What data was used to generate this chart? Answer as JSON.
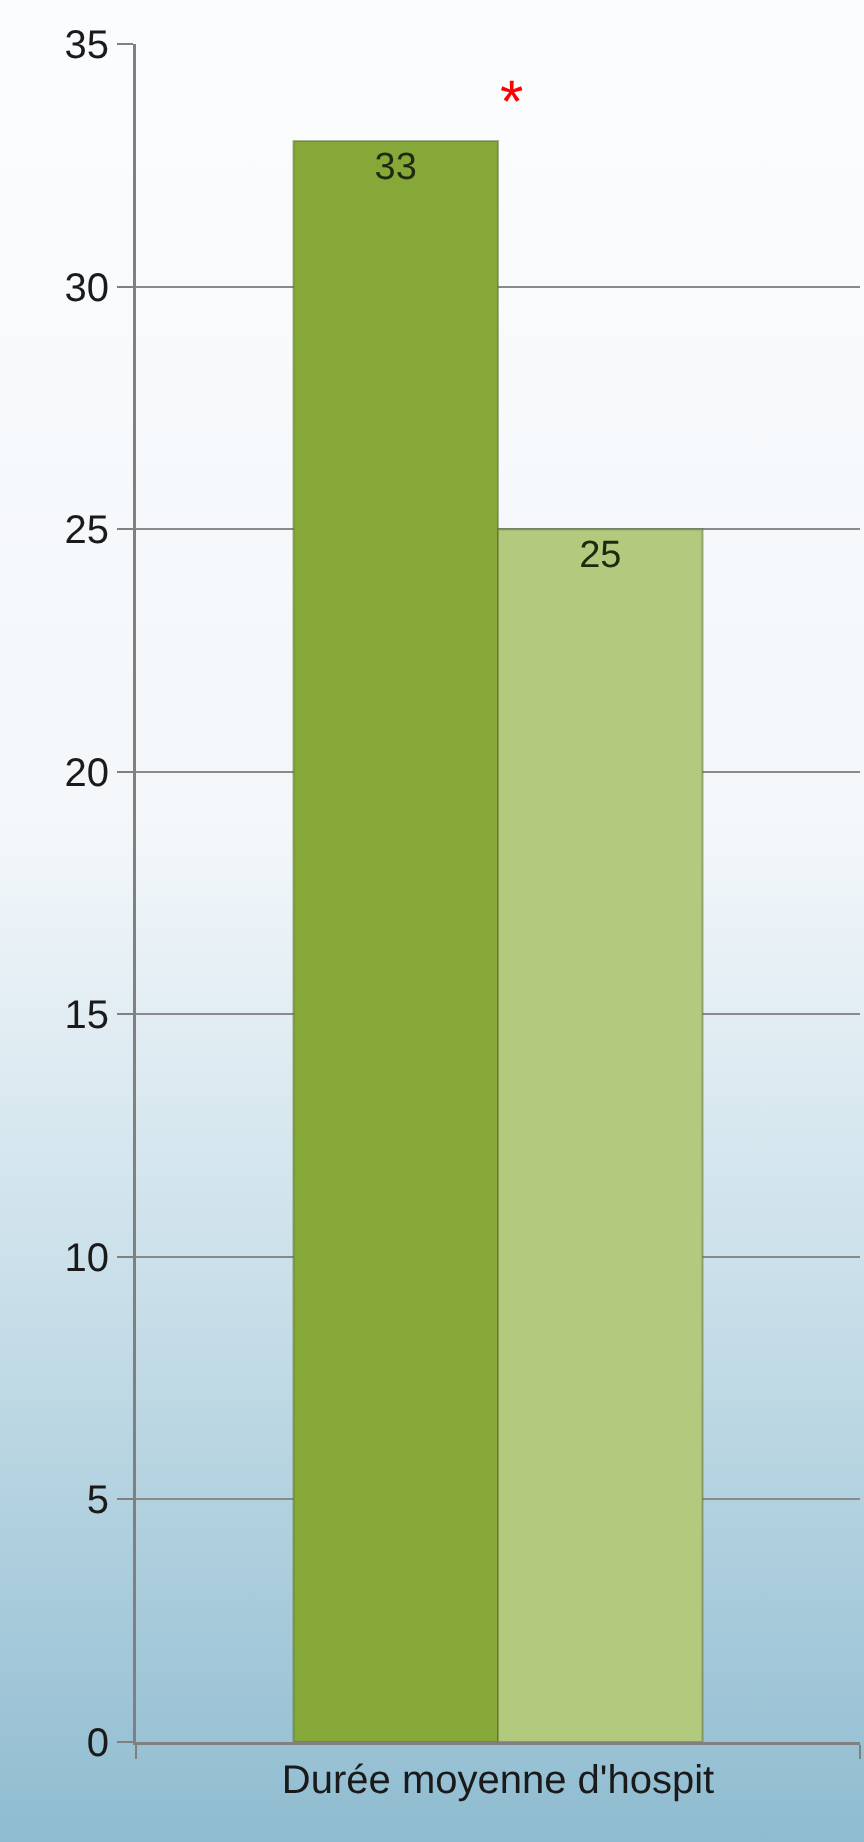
{
  "chart_data": {
    "type": "bar",
    "categories": [
      "Durée moyenne d'hospit"
    ],
    "series": [
      {
        "color": "#86a838",
        "values": [
          33
        ]
      },
      {
        "color": "#b3c97e",
        "values": [
          25
        ]
      }
    ],
    "ylim": [
      0,
      35
    ],
    "yticks": [
      0,
      5,
      10,
      15,
      20,
      25,
      30,
      35
    ],
    "grid": "y",
    "data_labels": true,
    "annotations": [
      "*"
    ]
  }
}
